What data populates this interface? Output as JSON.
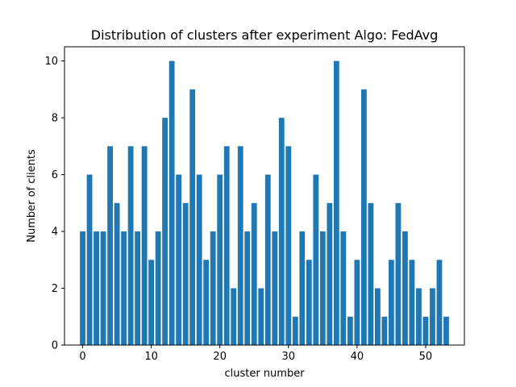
{
  "chart_data": {
    "type": "bar",
    "title": "Distribution of clusters after experiment Algo: FedAvg",
    "xlabel": "cluster number",
    "ylabel": "Number of clients",
    "x": [
      0,
      1,
      2,
      3,
      4,
      5,
      6,
      7,
      8,
      9,
      10,
      11,
      12,
      13,
      14,
      15,
      16,
      17,
      18,
      19,
      20,
      21,
      22,
      23,
      24,
      25,
      26,
      27,
      28,
      29,
      30,
      31,
      32,
      33,
      34,
      35,
      36,
      37,
      38,
      39,
      40,
      41,
      42,
      43,
      44,
      45,
      46,
      47,
      48,
      49,
      50,
      51,
      52,
      53
    ],
    "values": [
      4,
      6,
      4,
      4,
      7,
      5,
      4,
      7,
      4,
      7,
      3,
      4,
      8,
      10,
      6,
      5,
      9,
      6,
      3,
      4,
      6,
      7,
      2,
      7,
      4,
      5,
      2,
      6,
      4,
      8,
      7,
      1,
      4,
      3,
      6,
      4,
      5,
      10,
      4,
      1,
      3,
      9,
      5,
      2,
      1,
      3,
      5,
      4,
      3,
      2,
      1,
      2,
      3,
      1
    ],
    "xlim": [
      -2.65,
      55.65
    ],
    "ylim": [
      0,
      10.5
    ],
    "xticks": [
      "0",
      "10",
      "20",
      "30",
      "40",
      "50"
    ],
    "yticks": [
      "0",
      "2",
      "4",
      "6",
      "8",
      "10"
    ],
    "bar_color": "#1f77b4",
    "grid": false,
    "legend": "none"
  }
}
